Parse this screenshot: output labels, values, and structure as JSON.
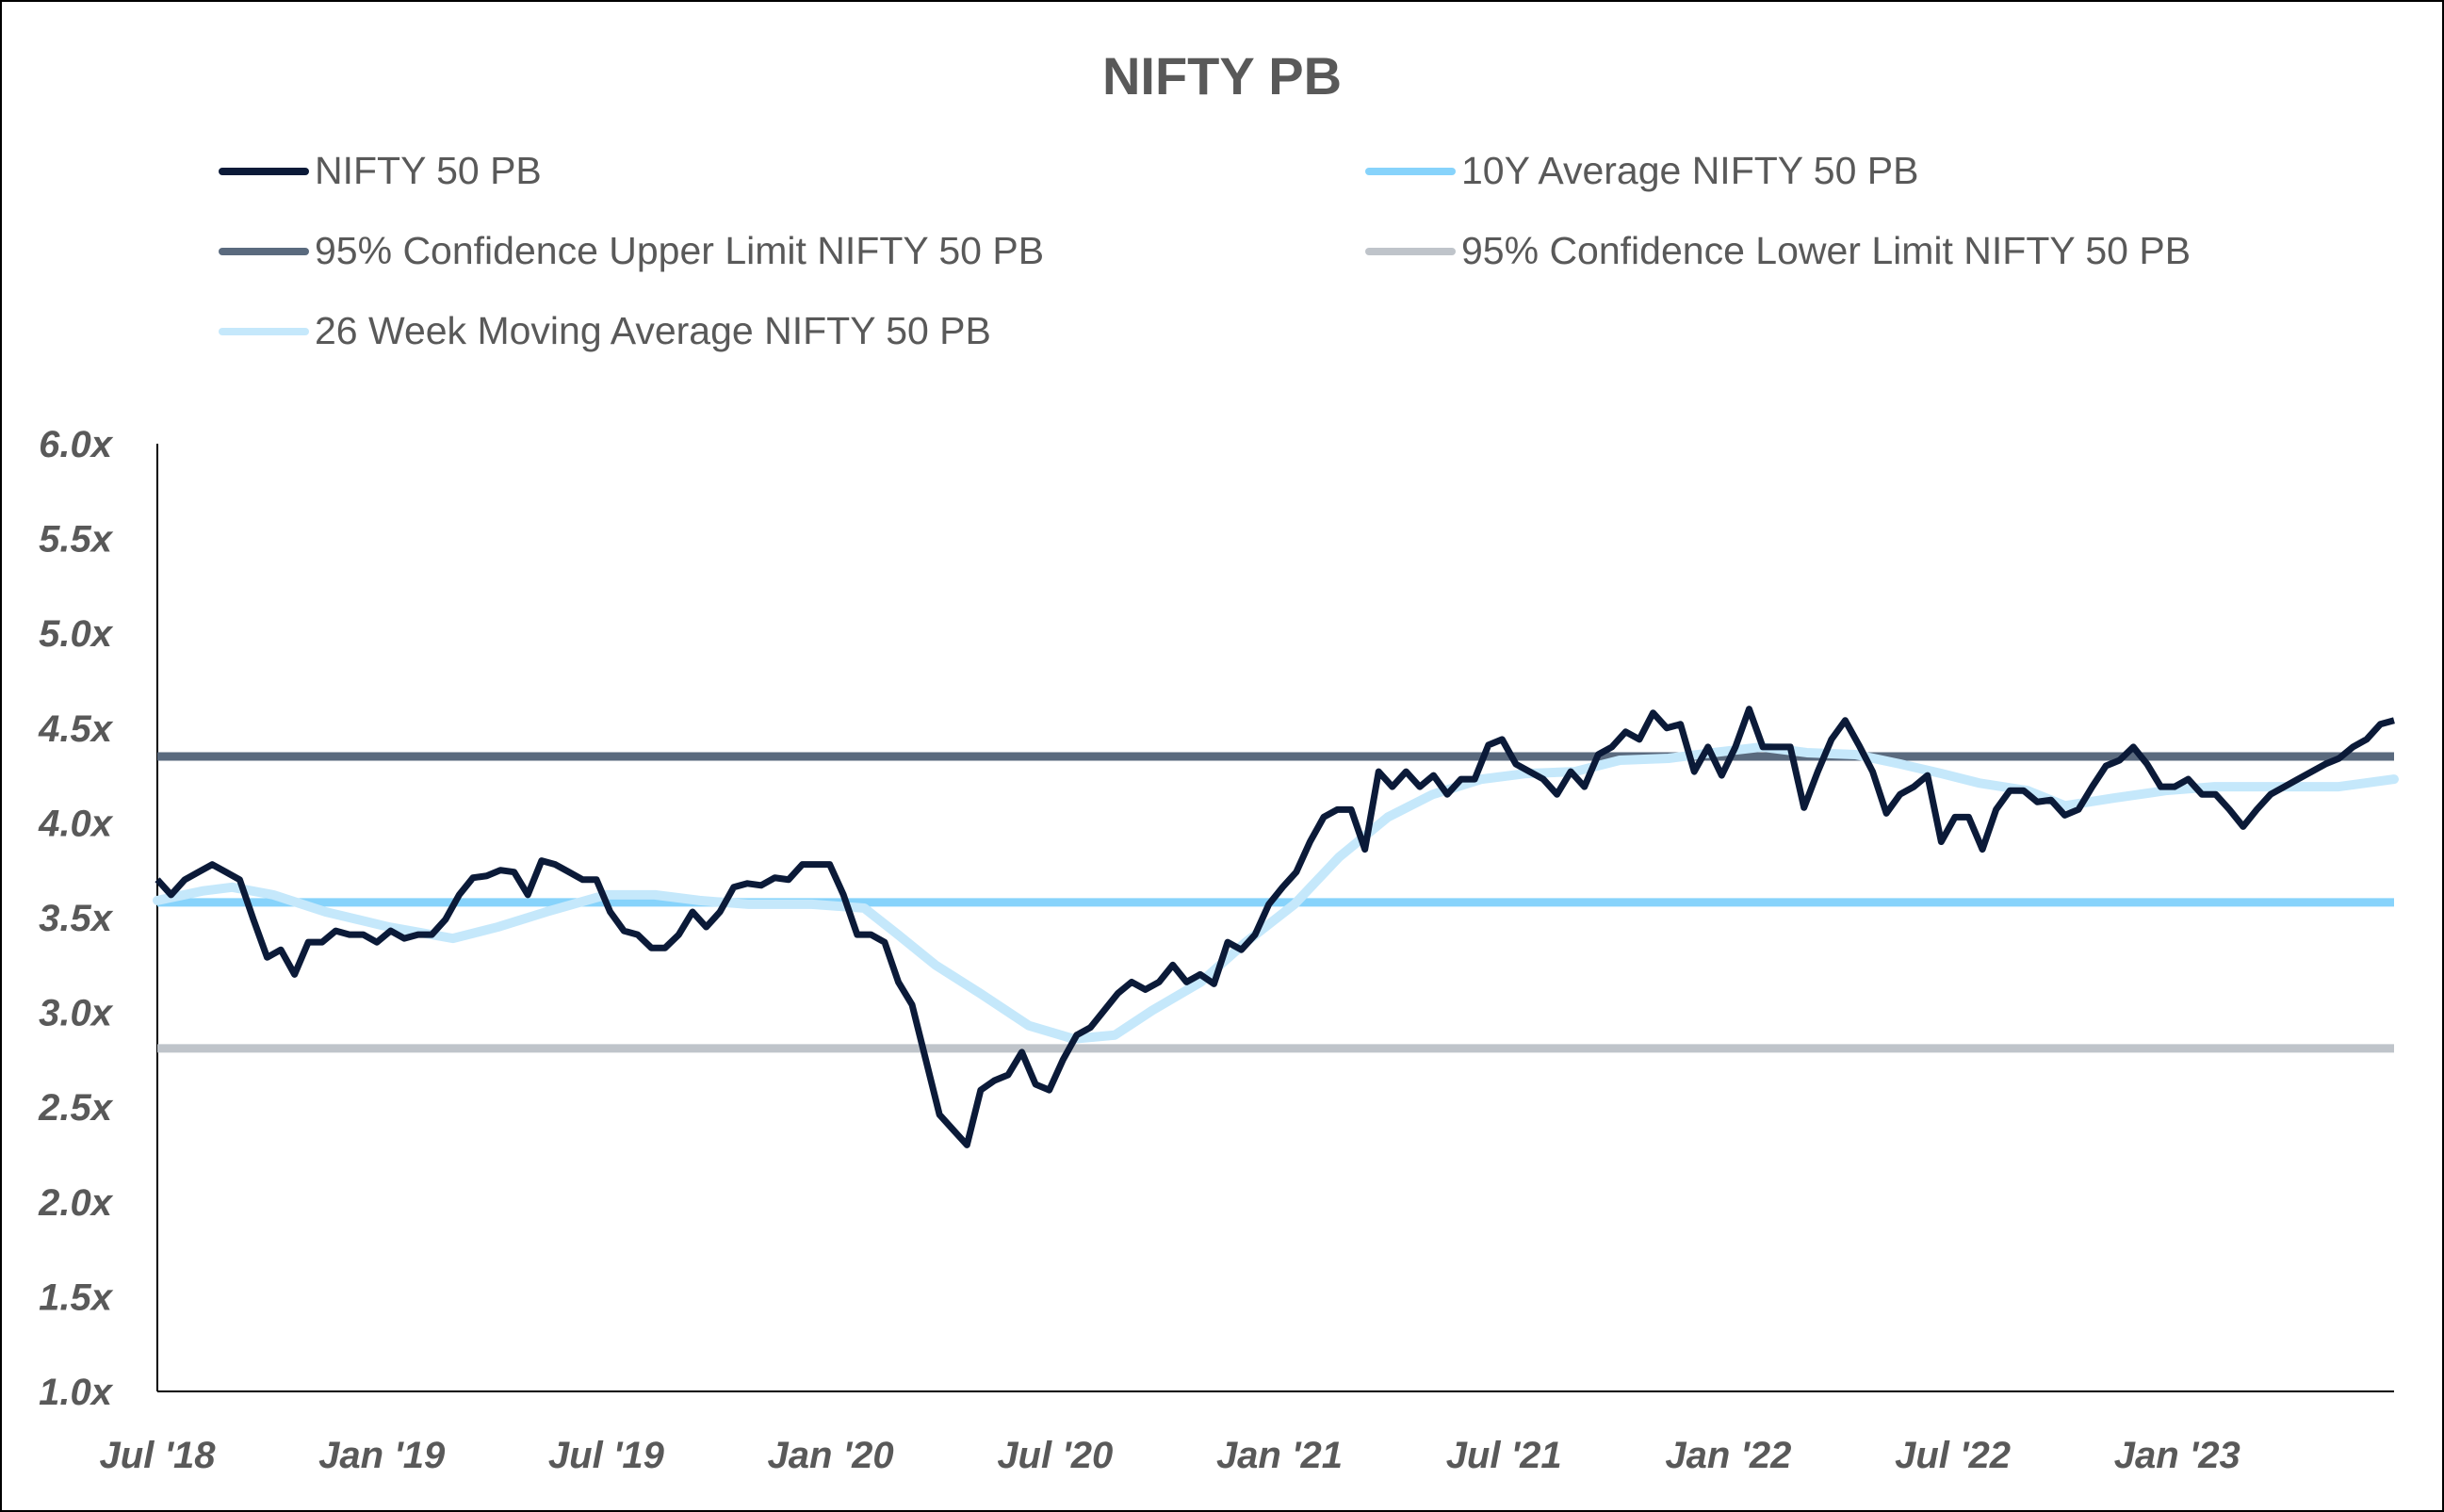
{
  "chart_data": {
    "type": "line",
    "title": "NIFTY PB",
    "xlabel": "",
    "ylabel": "",
    "ylim": [
      1.0,
      6.0
    ],
    "xlim_months_since_jul_2018": [
      0,
      59.8
    ],
    "y_ticks": [
      "1.0x",
      "1.5x",
      "2.0x",
      "2.5x",
      "3.0x",
      "3.5x",
      "4.0x",
      "4.5x",
      "5.0x",
      "5.5x",
      "6.0x"
    ],
    "x_ticks": [
      {
        "label": "Jul '18",
        "month": 0
      },
      {
        "label": "Jan '19",
        "month": 6
      },
      {
        "label": "Jul '19",
        "month": 12
      },
      {
        "label": "Jan '20",
        "month": 18
      },
      {
        "label": "Jul '20",
        "month": 24
      },
      {
        "label": "Jan '21",
        "month": 30
      },
      {
        "label": "Jul '21",
        "month": 36
      },
      {
        "label": "Jan '22",
        "month": 42
      },
      {
        "label": "Jul '22",
        "month": 48
      },
      {
        "label": "Jan '23",
        "month": 54
      }
    ],
    "grid": false,
    "legend_placement": "top",
    "series": [
      {
        "name": "NIFTY 50 PB",
        "color": "#0b1a38",
        "kind": "uniform",
        "values": [
          3.7,
          3.62,
          3.7,
          3.74,
          3.78,
          3.74,
          3.7,
          3.49,
          3.29,
          3.33,
          3.2,
          3.37,
          3.37,
          3.43,
          3.41,
          3.41,
          3.37,
          3.43,
          3.39,
          3.41,
          3.41,
          3.49,
          3.62,
          3.71,
          3.72,
          3.75,
          3.74,
          3.62,
          3.8,
          3.78,
          3.74,
          3.7,
          3.7,
          3.53,
          3.43,
          3.41,
          3.34,
          3.34,
          3.41,
          3.53,
          3.45,
          3.53,
          3.66,
          3.68,
          3.67,
          3.71,
          3.7,
          3.78,
          3.78,
          3.78,
          3.62,
          3.41,
          3.41,
          3.37,
          3.16,
          3.04,
          2.75,
          2.46,
          2.38,
          2.3,
          2.59,
          2.64,
          2.67,
          2.79,
          2.62,
          2.59,
          2.75,
          2.88,
          2.92,
          3.01,
          3.1,
          3.16,
          3.12,
          3.16,
          3.25,
          3.16,
          3.2,
          3.15,
          3.37,
          3.33,
          3.41,
          3.57,
          3.66,
          3.74,
          3.9,
          4.03,
          4.07,
          4.07,
          3.86,
          4.27,
          4.19,
          4.27,
          4.19,
          4.25,
          4.15,
          4.23,
          4.23,
          4.41,
          4.44,
          4.31,
          4.27,
          4.23,
          4.15,
          4.27,
          4.19,
          4.36,
          4.4,
          4.48,
          4.44,
          4.58,
          4.5,
          4.52,
          4.27,
          4.4,
          4.25,
          4.4,
          4.6,
          4.4,
          4.4,
          4.4,
          4.08,
          4.27,
          4.44,
          4.54,
          4.41,
          4.27,
          4.05,
          4.15,
          4.19,
          4.25,
          3.9,
          4.03,
          4.03,
          3.86,
          4.07,
          4.17,
          4.17,
          4.11,
          4.12,
          4.04,
          4.07,
          4.19,
          4.3,
          4.33,
          4.4,
          4.31,
          4.19,
          4.19,
          4.23,
          4.15,
          4.15,
          4.07,
          3.98,
          4.07,
          4.15,
          4.19,
          4.23,
          4.27,
          4.31,
          4.34,
          4.4,
          4.44,
          4.52,
          4.54
        ]
      },
      {
        "name": "10Y Average NIFTY 50 PB",
        "color": "#87d3fb",
        "kind": "constant",
        "value": 3.58
      },
      {
        "name": "95% Confidence Upper Limit NIFTY 50 PB",
        "color": "#5a6a7e",
        "kind": "constant",
        "value": 4.35
      },
      {
        "name": "95% Confidence Lower Limit NIFTY 50 PB",
        "color": "#bfc4ca",
        "kind": "constant",
        "value": 2.81
      },
      {
        "name": "26 Week Moving Average NIFTY 50 PB",
        "color": "#c5e8fb",
        "kind": "xy",
        "points": [
          [
            0,
            3.59
          ],
          [
            1.2,
            3.64
          ],
          [
            2.0,
            3.66
          ],
          [
            3.1,
            3.62
          ],
          [
            4.5,
            3.53
          ],
          [
            6.2,
            3.45
          ],
          [
            7.9,
            3.39
          ],
          [
            9.1,
            3.45
          ],
          [
            10.4,
            3.53
          ],
          [
            12.0,
            3.62
          ],
          [
            13.3,
            3.62
          ],
          [
            14.5,
            3.59
          ],
          [
            15.8,
            3.57
          ],
          [
            17.5,
            3.57
          ],
          [
            18.9,
            3.55
          ],
          [
            19.8,
            3.41
          ],
          [
            20.8,
            3.25
          ],
          [
            22.0,
            3.1
          ],
          [
            23.3,
            2.93
          ],
          [
            24.5,
            2.86
          ],
          [
            25.6,
            2.88
          ],
          [
            26.6,
            3.01
          ],
          [
            27.9,
            3.16
          ],
          [
            29.1,
            3.37
          ],
          [
            30.4,
            3.57
          ],
          [
            31.6,
            3.82
          ],
          [
            32.9,
            4.03
          ],
          [
            34.1,
            4.15
          ],
          [
            35.4,
            4.23
          ],
          [
            36.6,
            4.26
          ],
          [
            37.9,
            4.27
          ],
          [
            39.1,
            4.33
          ],
          [
            40.4,
            4.34
          ],
          [
            41.6,
            4.37
          ],
          [
            42.9,
            4.4
          ],
          [
            44.1,
            4.37
          ],
          [
            45.4,
            4.36
          ],
          [
            46.6,
            4.31
          ],
          [
            47.7,
            4.26
          ],
          [
            48.7,
            4.21
          ],
          [
            50.0,
            4.17
          ],
          [
            51.0,
            4.09
          ],
          [
            52.3,
            4.13
          ],
          [
            53.7,
            4.17
          ],
          [
            55.0,
            4.19
          ],
          [
            56.6,
            4.19
          ],
          [
            58.3,
            4.19
          ],
          [
            59.8,
            4.23
          ]
        ]
      }
    ]
  }
}
